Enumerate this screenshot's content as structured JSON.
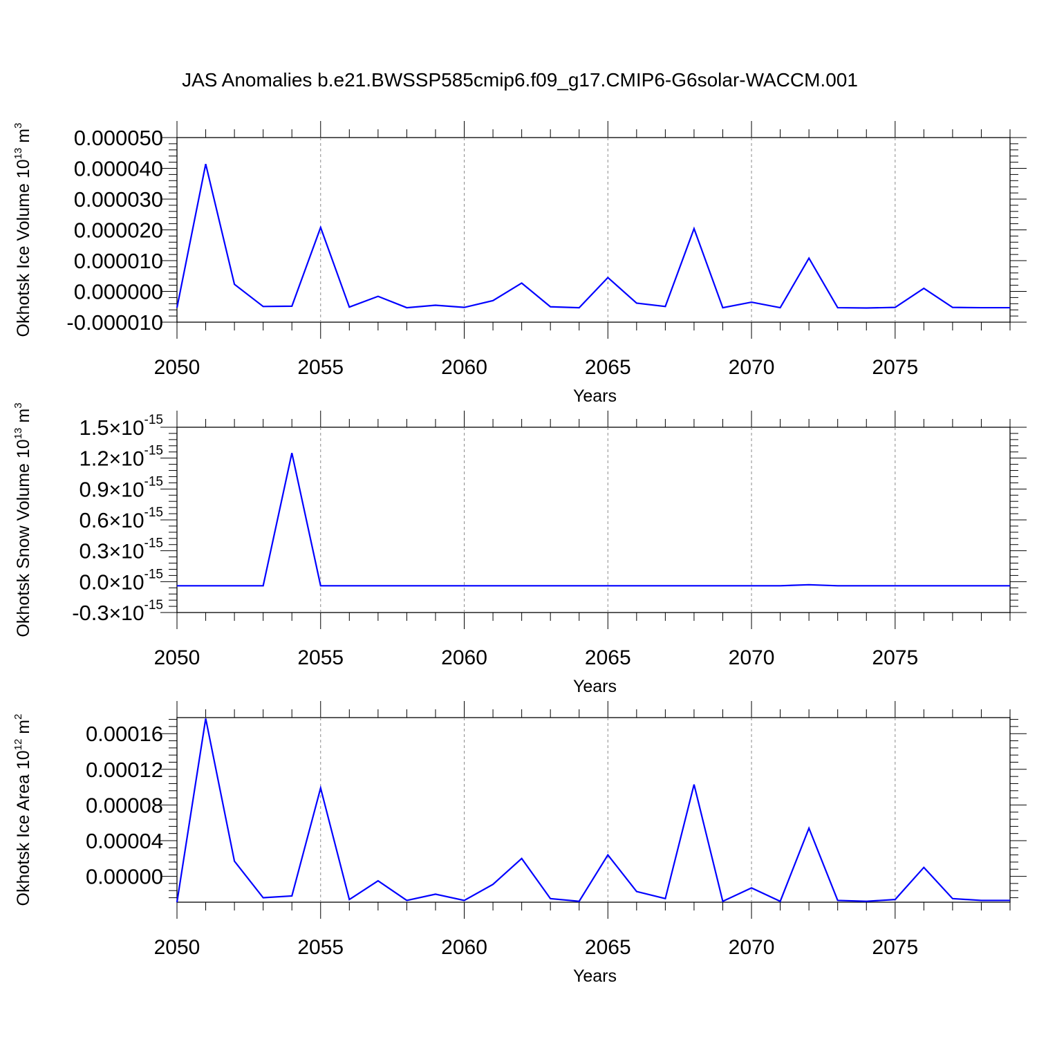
{
  "title": "JAS Anomalies b.e21.BWSSP585cmip6.f09_g17.CMIP6-G6solar-WACCM.001",
  "colors": {
    "line": "#0000ff",
    "axis": "#000000",
    "grid": "#8a8a8a"
  },
  "chart_data": [
    {
      "type": "line",
      "ylabel": "Okhotsk Ice Volume 10",
      "ylabel_exp": "13",
      "ylabel_unit": "m",
      "ylabel_unit_exp": "3",
      "xlabel": "Years",
      "xlim": [
        2050,
        2079
      ],
      "ylim": [
        -1e-05,
        5e-05
      ],
      "x_ticks": [
        2050,
        2055,
        2060,
        2065,
        2070,
        2075
      ],
      "y_ticks": [
        -1e-05,
        0,
        1e-05,
        2e-05,
        3e-05,
        4e-05,
        5e-05
      ],
      "y_tick_labels": [
        "-0.000010",
        "0.000000",
        "0.000010",
        "0.000020",
        "0.000030",
        "0.000040",
        "0.000050"
      ],
      "grid": "vertical dashed at major x ticks",
      "series": [
        {
          "x": [
            2050,
            2051,
            2052,
            2053,
            2054,
            2055,
            2056,
            2057,
            2058,
            2059,
            2060,
            2061,
            2062,
            2063,
            2064,
            2065,
            2066,
            2067,
            2068,
            2069,
            2070,
            2071,
            2072,
            2073,
            2074,
            2075,
            2076,
            2077,
            2078,
            2079
          ],
          "values": [
            -5.3e-06,
            4.14e-05,
            2.3e-06,
            -4.9e-06,
            -4.8e-06,
            2.08e-05,
            -5.1e-06,
            -1.6e-06,
            -5.3e-06,
            -4.5e-06,
            -5.2e-06,
            -3e-06,
            2.7e-06,
            -5e-06,
            -5.3e-06,
            4.5e-06,
            -3.8e-06,
            -4.9e-06,
            2.04e-05,
            -5.3e-06,
            -3.5e-06,
            -5.3e-06,
            1.08e-05,
            -5.3e-06,
            -5.4e-06,
            -5.2e-06,
            1e-06,
            -5.2e-06,
            -5.3e-06,
            -5.3e-06
          ]
        }
      ]
    },
    {
      "type": "line",
      "ylabel": "Okhotsk Snow Volume 10",
      "ylabel_exp": "13",
      "ylabel_unit": "m",
      "ylabel_unit_exp": "3",
      "xlabel": "Years",
      "xlim": [
        2050,
        2079
      ],
      "ylim": [
        -0.3,
        1.5
      ],
      "y_scale_note": "values in units of 10^-15",
      "x_ticks": [
        2050,
        2055,
        2060,
        2065,
        2070,
        2075
      ],
      "y_ticks": [
        -0.3,
        0.0,
        0.3,
        0.6,
        0.9,
        1.2,
        1.5
      ],
      "y_tick_labels": [
        "-0.3",
        "0.0",
        "0.3",
        "0.6",
        "0.9",
        "1.2",
        "1.5"
      ],
      "y_tick_suffix": "10",
      "y_tick_suffix_exp": "-15",
      "grid": "vertical dashed at major x ticks",
      "series": [
        {
          "x": [
            2050,
            2051,
            2052,
            2053,
            2054,
            2055,
            2056,
            2057,
            2058,
            2059,
            2060,
            2061,
            2062,
            2063,
            2064,
            2065,
            2066,
            2067,
            2068,
            2069,
            2070,
            2071,
            2072,
            2073,
            2074,
            2075,
            2076,
            2077,
            2078,
            2079
          ],
          "values": [
            -0.04,
            -0.04,
            -0.04,
            -0.04,
            1.25,
            -0.04,
            -0.04,
            -0.04,
            -0.04,
            -0.04,
            -0.04,
            -0.04,
            -0.04,
            -0.04,
            -0.04,
            -0.04,
            -0.04,
            -0.04,
            -0.04,
            -0.04,
            -0.04,
            -0.04,
            -0.03,
            -0.04,
            -0.04,
            -0.04,
            -0.04,
            -0.04,
            -0.04,
            -0.04
          ]
        }
      ]
    },
    {
      "type": "line",
      "ylabel": "Okhotsk Ice Area 10",
      "ylabel_exp": "12",
      "ylabel_unit": "m",
      "ylabel_unit_exp": "2",
      "xlabel": "Years",
      "xlim": [
        2050,
        2079
      ],
      "ylim": [
        -2.9e-05,
        0.000178
      ],
      "x_ticks": [
        2050,
        2055,
        2060,
        2065,
        2070,
        2075
      ],
      "y_ticks": [
        0,
        4e-05,
        8e-05,
        0.00012,
        0.00016
      ],
      "y_tick_labels": [
        "0.00000",
        "0.00004",
        "0.00008",
        "0.00012",
        "0.00016"
      ],
      "grid": "vertical dashed at major x ticks",
      "series": [
        {
          "x": [
            2050,
            2051,
            2052,
            2053,
            2054,
            2055,
            2056,
            2057,
            2058,
            2059,
            2060,
            2061,
            2062,
            2063,
            2064,
            2065,
            2066,
            2067,
            2068,
            2069,
            2070,
            2071,
            2072,
            2073,
            2074,
            2075,
            2076,
            2077,
            2078,
            2079
          ],
          "values": [
            -2.9e-05,
            0.000177,
            1.7e-05,
            -2.4e-05,
            -2.2e-05,
            9.9e-05,
            -2.6e-05,
            -5e-06,
            -2.7e-05,
            -2e-05,
            -2.7e-05,
            -9e-06,
            2e-05,
            -2.5e-05,
            -2.8e-05,
            2.4e-05,
            -1.7e-05,
            -2.5e-05,
            0.000103,
            -2.8e-05,
            -1.3e-05,
            -2.8e-05,
            5.4e-05,
            -2.7e-05,
            -2.8e-05,
            -2.6e-05,
            1e-05,
            -2.5e-05,
            -2.7e-05,
            -2.7e-05
          ]
        }
      ]
    }
  ]
}
